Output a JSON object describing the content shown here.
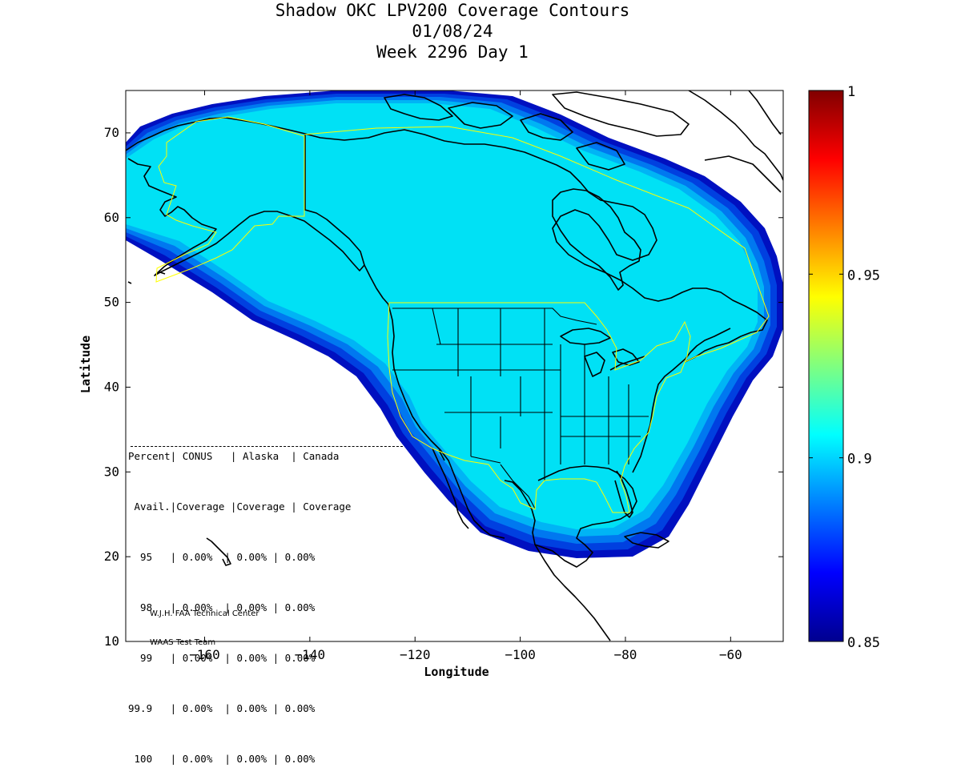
{
  "title": {
    "line1": "Shadow OKC LPV200 Coverage Contours",
    "line2": "01/08/24",
    "line3": "Week 2296 Day 1"
  },
  "axes": {
    "xlabel": "Longitude",
    "ylabel": "Latitude",
    "xlim": [
      -175,
      -50
    ],
    "ylim": [
      10,
      75
    ],
    "xticks": [
      -160,
      -140,
      -120,
      -100,
      -80,
      -60
    ],
    "yticks": [
      10,
      20,
      30,
      40,
      50,
      60,
      70
    ]
  },
  "colorbar": {
    "min": 0.85,
    "max": 1,
    "ticks": [
      "0.85",
      "0.9",
      "0.95",
      "1"
    ],
    "colormap": "jet"
  },
  "table": {
    "header1": "Percent| CONUS   | Alaska  | Canada",
    "header2": " Avail.|Coverage |Coverage | Coverage",
    "rows": [
      "  95   | 0.00%  | 0.00% | 0.00%",
      "  98   | 0.00%  | 0.00% | 0.00%",
      "  99   | 0.00%  | 0.00% | 0.00%",
      "99.9   | 0.00%  | 0.00% | 0.00%",
      " 100   | 0.00%  | 0.00% | 0.00%"
    ]
  },
  "credit": {
    "line1": "W.J.H. FAA Technical Center",
    "line2": "WAAS Test Team"
  },
  "colors": {
    "coverage_fill": "#00e1f5",
    "edge_1": "#00b4f5",
    "edge_2": "#0078f0",
    "edge_3": "#0040e0",
    "edge_4": "#0010c0",
    "service_boundary": "#ffff00",
    "coastline": "#000000"
  }
}
